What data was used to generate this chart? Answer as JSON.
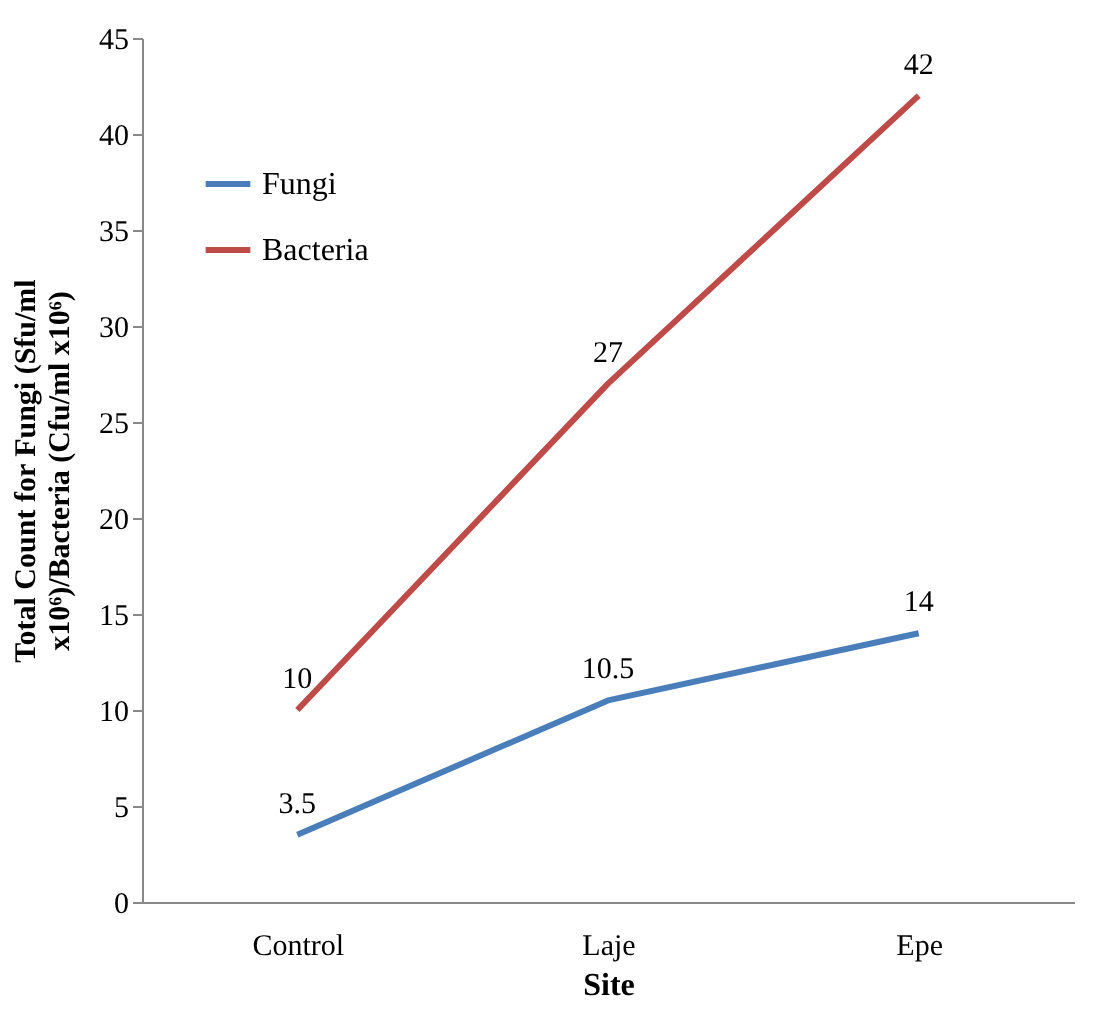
{
  "chart_data": {
    "type": "line",
    "xlabel": "Site",
    "ylabel": "Total Count for Fungi (Sfu/ml x10⁶)/Bacteria (Cfu/ml x10⁶)",
    "categories": [
      "Control",
      "Laje",
      "Epe"
    ],
    "series": [
      {
        "name": "Fungi",
        "color": "#4a7ebb",
        "values": [
          3.5,
          10.5,
          14
        ]
      },
      {
        "name": "Bacteria",
        "color": "#be4b48",
        "values": [
          10,
          27,
          42
        ]
      }
    ],
    "ylim": [
      0,
      45
    ],
    "yticks": [
      0,
      5,
      10,
      15,
      20,
      25,
      30,
      35,
      40,
      45
    ],
    "data_labels": true,
    "grid": false,
    "legend": "top left",
    "marker": "none",
    "line_style": "solid"
  }
}
